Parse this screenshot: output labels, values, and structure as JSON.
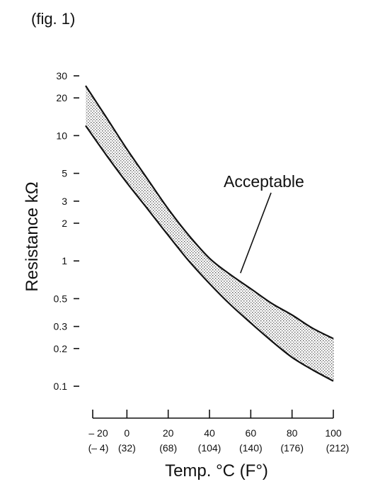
{
  "figure_label": "(fig. 1)",
  "colors": {
    "ink": "#111111",
    "band_fill": "#d4d4d4",
    "background": "#ffffff"
  },
  "chart_data": {
    "type": "area",
    "title": "",
    "xlabel": "Temp. °C (F°)",
    "ylabel": "Resistance kΩ",
    "yscale": "log",
    "xlim": [
      -20,
      100
    ],
    "ylim": [
      0.1,
      30
    ],
    "x_ticks": [
      {
        "value": -20,
        "label": "– 20",
        "sublabel": "(– 4)"
      },
      {
        "value": 0,
        "label": "0",
        "sublabel": "(32)"
      },
      {
        "value": 20,
        "label": "20",
        "sublabel": "(68)"
      },
      {
        "value": 40,
        "label": "40",
        "sublabel": "(104)"
      },
      {
        "value": 60,
        "label": "60",
        "sublabel": "(140)"
      },
      {
        "value": 80,
        "label": "80",
        "sublabel": "(176)"
      },
      {
        "value": 100,
        "label": "100",
        "sublabel": "(212)"
      }
    ],
    "y_ticks": [
      {
        "value": 30,
        "label": "30"
      },
      {
        "value": 20,
        "label": "20"
      },
      {
        "value": 10,
        "label": "10"
      },
      {
        "value": 5,
        "label": "5"
      },
      {
        "value": 3,
        "label": "3"
      },
      {
        "value": 2,
        "label": "2"
      },
      {
        "value": 1,
        "label": "1"
      },
      {
        "value": 0.5,
        "label": "0.5"
      },
      {
        "value": 0.3,
        "label": "0.3"
      },
      {
        "value": 0.2,
        "label": "0.2"
      },
      {
        "value": 0.1,
        "label": "0.1"
      }
    ],
    "series": [
      {
        "x": [
          -20,
          -10,
          0,
          10,
          20,
          30,
          40,
          50,
          60,
          70,
          80,
          90,
          100
        ],
        "values": [
          25,
          14,
          7.8,
          4.5,
          2.6,
          1.6,
          1.05,
          0.78,
          0.6,
          0.46,
          0.37,
          0.29,
          0.24
        ]
      },
      {
        "x": [
          -20,
          -10,
          0,
          10,
          20,
          30,
          40,
          50,
          60,
          70,
          80,
          90,
          100
        ],
        "values": [
          12,
          7,
          4.2,
          2.6,
          1.6,
          1.0,
          0.66,
          0.45,
          0.32,
          0.23,
          0.17,
          0.135,
          0.11
        ]
      }
    ],
    "annotations": [
      {
        "text": "Acceptable",
        "points_to": {
          "x": 55,
          "y": 0.8
        }
      }
    ],
    "grid": false
  }
}
